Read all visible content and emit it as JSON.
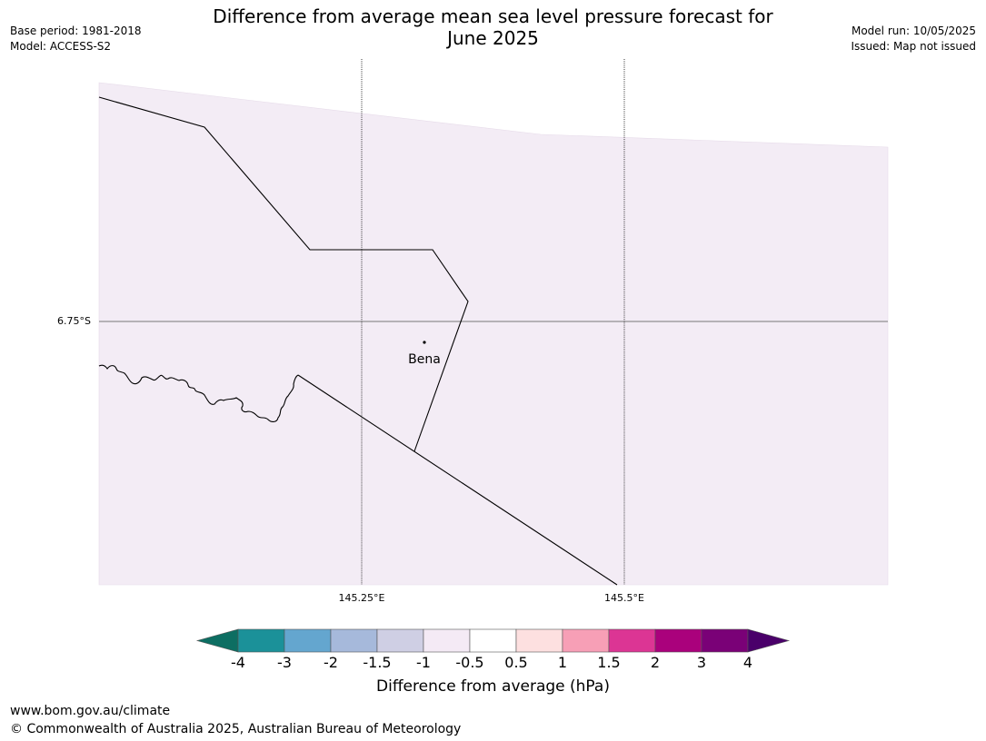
{
  "title": {
    "line1": "Difference from average mean sea level pressure forecast for",
    "line2": "June 2025"
  },
  "meta_left": {
    "base_period": "Base period: 1981-2018",
    "model": "Model: ACCESS-S2"
  },
  "meta_right": {
    "model_run": "Model run: 10/05/2025",
    "issued": "Issued: Map not issued"
  },
  "map": {
    "fill_color": "#f3ecf5",
    "latitude_labels": [
      "6.75°S"
    ],
    "longitude_labels": [
      "145.25°E",
      "145.5°E"
    ],
    "places": [
      {
        "name": "Bena"
      }
    ]
  },
  "colorbar": {
    "label": "Difference from average (hPa)",
    "ticks": [
      "-4",
      "-3",
      "-2",
      "-1.5",
      "-1",
      "-0.5",
      "0.5",
      "1",
      "1.5",
      "2",
      "3",
      "4"
    ],
    "colors": [
      "#0d6e62",
      "#1b9199",
      "#64a6cf",
      "#a6b9db",
      "#cfcfe4",
      "#f4eaf5",
      "#ffffff",
      "#fde0e0",
      "#f79fb6",
      "#dc3594",
      "#aa017c",
      "#7a0177",
      "#4a006a"
    ]
  },
  "footer": {
    "url": "www.bom.gov.au/climate",
    "copyright": "© Commonwealth of Australia 2025, Australian Bureau of Meteorology"
  }
}
